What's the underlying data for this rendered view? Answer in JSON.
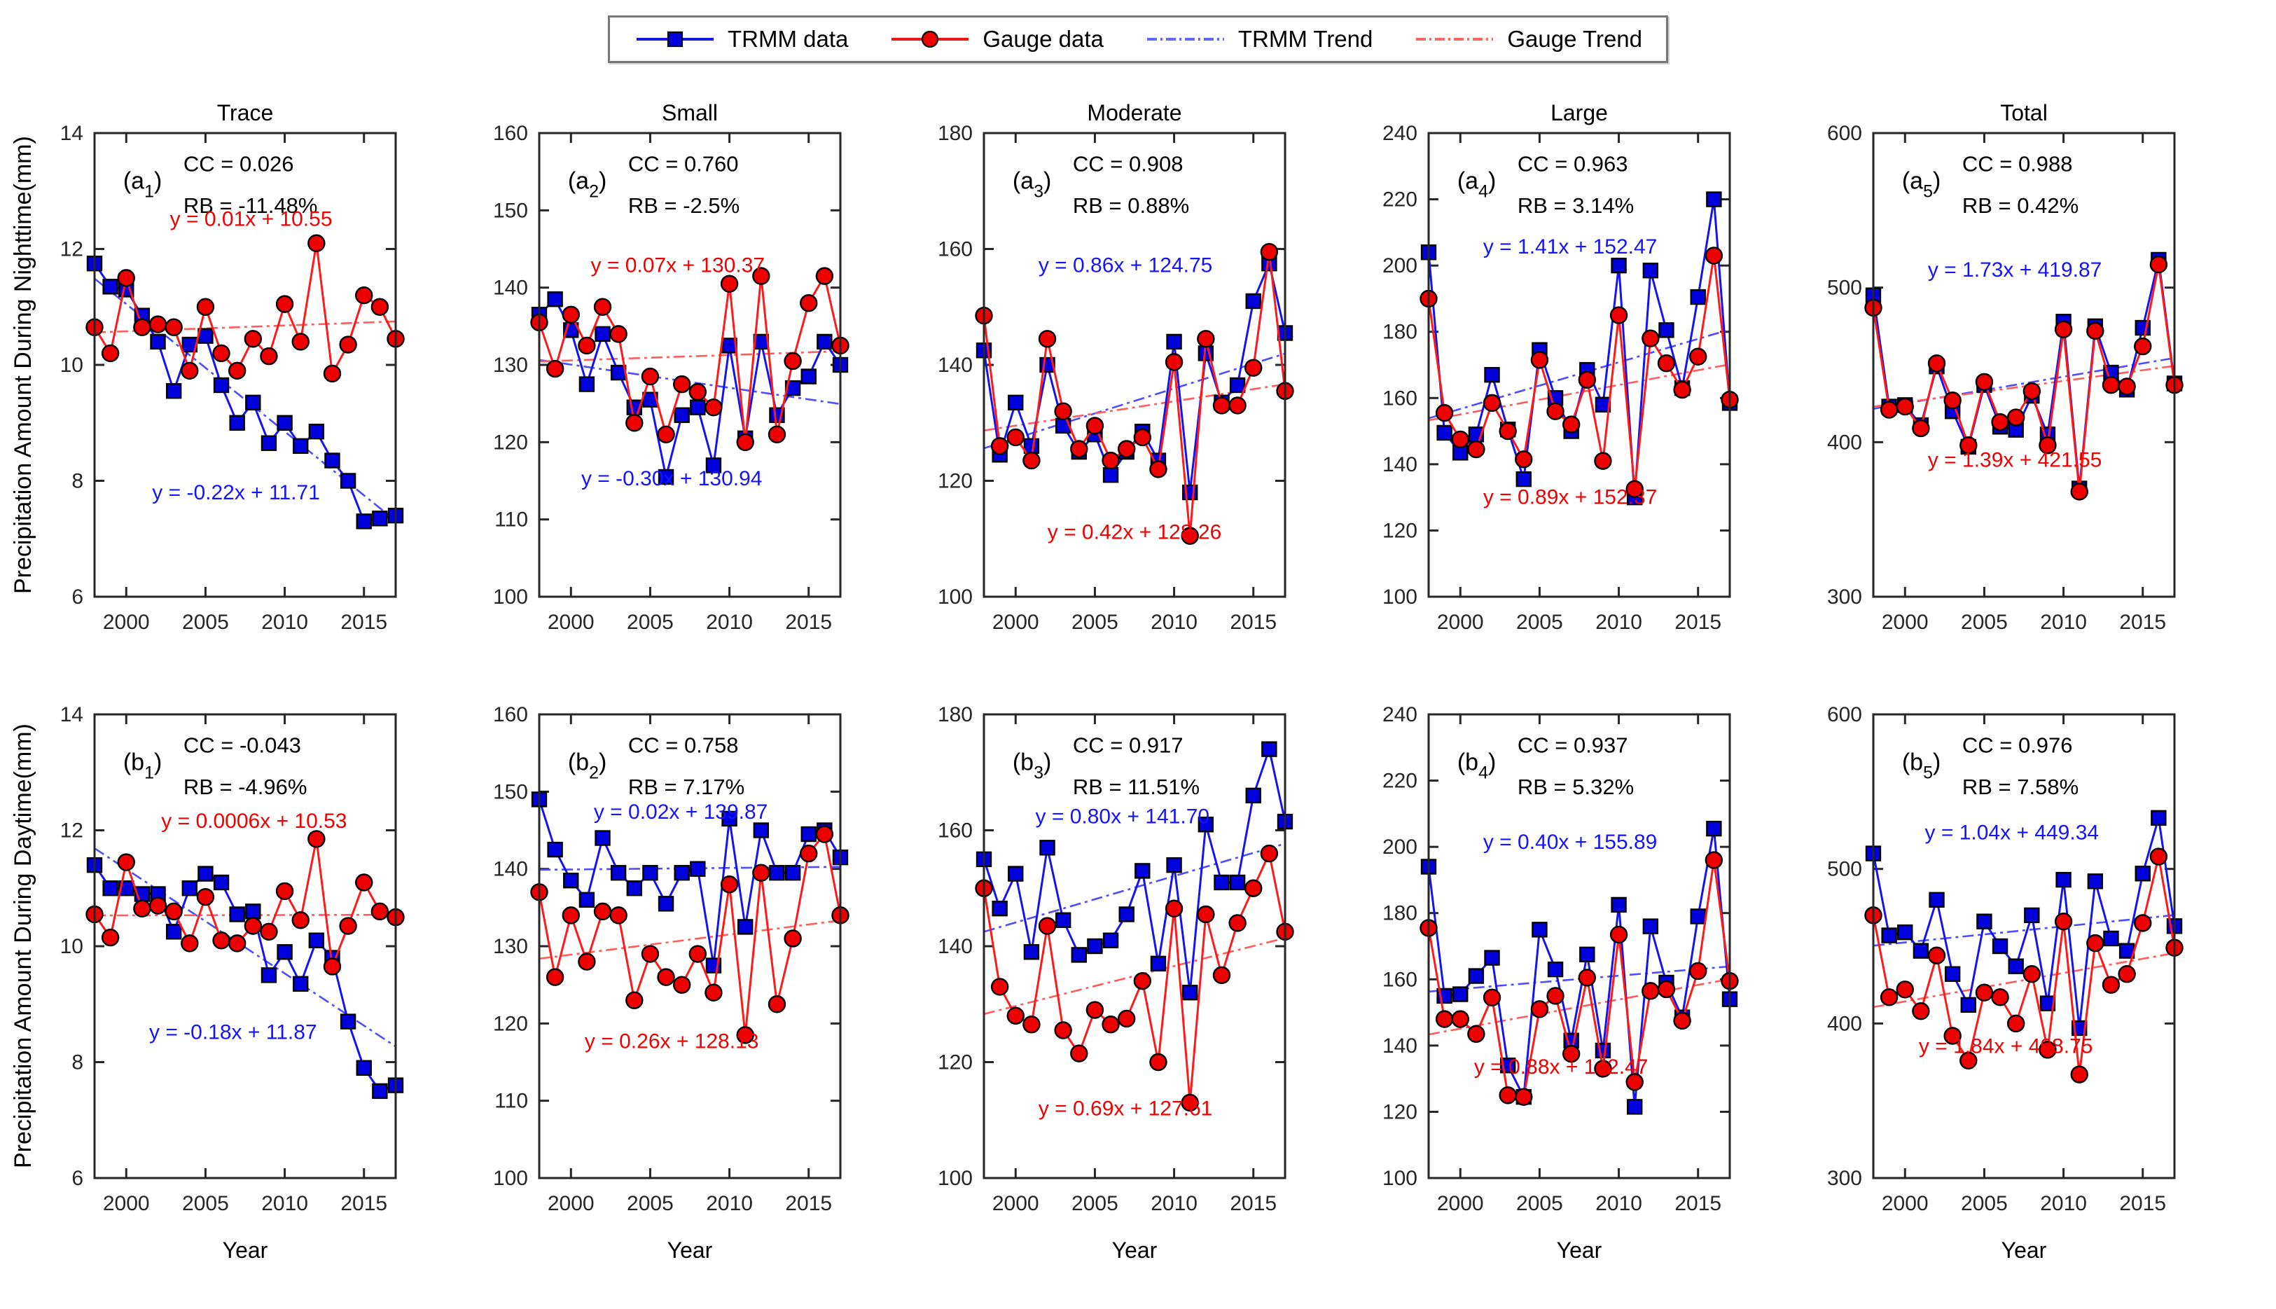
{
  "chart_data": {
    "type": "line",
    "x_years": [
      1998,
      1999,
      2000,
      2001,
      2002,
      2003,
      2004,
      2005,
      2006,
      2007,
      2008,
      2009,
      2010,
      2011,
      2012,
      2013,
      2014,
      2015,
      2016,
      2017
    ],
    "xticks": [
      2000,
      2005,
      2010,
      2015
    ],
    "xlabel": "Year",
    "row_labels": {
      "a": "Precipitation Amount During Nighttime(mm)",
      "b": "Precipitation Amount During Daytime(mm)"
    },
    "legend": {
      "position": "top-center",
      "items": [
        {
          "label": "TRMM data",
          "series": "trmm",
          "color": "#1414f0",
          "marker": "square",
          "line": "solid"
        },
        {
          "label": "Gauge data",
          "series": "gauge",
          "color": "#f01414",
          "marker": "circle",
          "line": "solid"
        },
        {
          "label": "TRMM Trend",
          "series": "trmm",
          "color": "#6666ff",
          "marker": "none",
          "line": "dashdot"
        },
        {
          "label": "Gauge Trend",
          "series": "gauge",
          "color": "#ff6666",
          "marker": "none",
          "line": "dashdot"
        }
      ]
    },
    "colors": {
      "axis": "#262626",
      "trmm_line": "#1414f0",
      "trmm_marker": "#0000dc",
      "trmm_trend": "#4d4dff",
      "trmm_text": "#1414ff",
      "gauge_line": "#ff1a1a",
      "gauge_marker": "#ee0000",
      "gauge_trend": "#ff5c5c",
      "gauge_text": "#f00000"
    },
    "panels": [
      {
        "id": "a1",
        "row": "a",
        "col": 0,
        "title": "Trace",
        "label": {
          "open": "(a",
          "sub": "1",
          "close": ")"
        },
        "cc": "CC = 0.026",
        "rb": "RB = -11.48%",
        "ylim": [
          6,
          14
        ],
        "yticks": [
          6,
          8,
          10,
          12,
          14
        ],
        "trmm": {
          "values": [
            11.75,
            11.35,
            11.3,
            10.85,
            10.4,
            9.55,
            10.35,
            10.5,
            9.65,
            9.0,
            9.35,
            8.65,
            9.0,
            8.6,
            8.85,
            8.35,
            8.0,
            7.3,
            7.35,
            7.4
          ],
          "trend": {
            "slope": -0.22,
            "intercept": 11.71
          },
          "eq": "y = -0.22x + 11.71",
          "eq_pos": {
            "x": 0.47,
            "y": 0.79
          }
        },
        "gauge": {
          "values": [
            10.65,
            10.2,
            11.5,
            10.65,
            10.7,
            10.65,
            9.9,
            11.0,
            10.2,
            9.9,
            10.45,
            10.15,
            11.05,
            10.4,
            12.1,
            9.85,
            10.35,
            11.2,
            11.0,
            10.45
          ],
          "trend": {
            "slope": 0.01,
            "intercept": 10.55
          },
          "eq": "y = 0.01x + 10.55",
          "eq_pos": {
            "x": 0.52,
            "y": 0.2
          }
        }
      },
      {
        "id": "a2",
        "row": "a",
        "col": 1,
        "title": "Small",
        "label": {
          "open": "(a",
          "sub": "2",
          "close": ")"
        },
        "cc": "CC = 0.760",
        "rb": "RB = -2.5%",
        "ylim": [
          100,
          160
        ],
        "yticks": [
          100,
          110,
          120,
          130,
          140,
          150,
          160
        ],
        "trmm": {
          "values": [
            136.5,
            138.5,
            134.5,
            127.5,
            134,
            129,
            124.5,
            125.5,
            115.5,
            123.5,
            124.5,
            117,
            132.5,
            120.5,
            133,
            123.5,
            127,
            128.5,
            133,
            130
          ],
          "trend": {
            "slope": -0.3,
            "intercept": 130.94
          },
          "eq": "y = -0.30x + 130.94",
          "eq_pos": {
            "x": 0.44,
            "y": 0.76
          }
        },
        "gauge": {
          "values": [
            135.5,
            129.5,
            136.5,
            132.5,
            137.5,
            134,
            122.5,
            128.5,
            121,
            127.5,
            126.5,
            124.5,
            140.5,
            120,
            141.5,
            121,
            130.5,
            138,
            141.5,
            132.5
          ],
          "trend": {
            "slope": 0.07,
            "intercept": 130.37
          },
          "eq": "y = 0.07x + 130.37",
          "eq_pos": {
            "x": 0.46,
            "y": 0.3
          }
        }
      },
      {
        "id": "a3",
        "row": "a",
        "col": 2,
        "title": "Moderate",
        "label": {
          "open": "(a",
          "sub": "3",
          "close": ")"
        },
        "cc": "CC = 0.908",
        "rb": "RB = 0.88%",
        "ylim": [
          100,
          180
        ],
        "yticks": [
          100,
          120,
          140,
          160,
          180
        ],
        "trmm": {
          "values": [
            142.5,
            124.5,
            133.5,
            126,
            140,
            129.5,
            125,
            128,
            121,
            125,
            128.5,
            123.5,
            144,
            118,
            142,
            133.5,
            136.5,
            151,
            157.5,
            145.5
          ],
          "trend": {
            "slope": 0.86,
            "intercept": 124.75
          },
          "eq": "y = 0.86x + 124.75",
          "eq_pos": {
            "x": 0.47,
            "y": 0.3
          }
        },
        "gauge": {
          "values": [
            148.5,
            126,
            127.5,
            123.5,
            144.5,
            132,
            125.5,
            129.5,
            123.5,
            125.5,
            127.5,
            122,
            140.5,
            110.5,
            144.5,
            133,
            133,
            139.5,
            159.5,
            135.5
          ],
          "trend": {
            "slope": 0.42,
            "intercept": 128.26
          },
          "eq": "y = 0.42x + 128.26",
          "eq_pos": {
            "x": 0.5,
            "y": 0.875
          }
        }
      },
      {
        "id": "a4",
        "row": "a",
        "col": 3,
        "title": "Large",
        "label": {
          "open": "(a",
          "sub": "4",
          "close": ")"
        },
        "cc": "CC = 0.963",
        "rb": "RB = 3.14%",
        "ylim": [
          100,
          240
        ],
        "yticks": [
          100,
          120,
          140,
          160,
          180,
          200,
          220,
          240
        ],
        "trmm": {
          "values": [
            204,
            149.5,
            143.5,
            149,
            167,
            150.5,
            135.5,
            174.5,
            160,
            150,
            168.5,
            158,
            200,
            130,
            198.5,
            180.5,
            163,
            190.5,
            220,
            158.5
          ],
          "trend": {
            "slope": 1.41,
            "intercept": 152.47
          },
          "eq": "y = 1.41x + 152.47",
          "eq_pos": {
            "x": 0.47,
            "y": 0.26
          }
        },
        "gauge": {
          "values": [
            190,
            155.5,
            147.5,
            144.5,
            158.5,
            150,
            141.5,
            171.5,
            156,
            152,
            165.5,
            141,
            185,
            132.5,
            178,
            170.5,
            162.5,
            172.5,
            203,
            159.5
          ],
          "trend": {
            "slope": 0.89,
            "intercept": 152.37
          },
          "eq": "y = 0.89x + 152.37",
          "eq_pos": {
            "x": 0.47,
            "y": 0.8
          }
        }
      },
      {
        "id": "a5",
        "row": "a",
        "col": 4,
        "title": "Total",
        "label": {
          "open": "(a",
          "sub": "5",
          "close": ")"
        },
        "cc": "CC = 0.988",
        "rb": "RB = 0.42%",
        "ylim": [
          300,
          600
        ],
        "yticks": [
          300,
          400,
          500,
          600
        ],
        "trmm": {
          "values": [
            495,
            423,
            424,
            411,
            449,
            420,
            397,
            437,
            410,
            408,
            430,
            405,
            478,
            370,
            475,
            445,
            434,
            474,
            518,
            438
          ],
          "trend": {
            "slope": 1.73,
            "intercept": 419.87
          },
          "eq": "y = 1.73x + 419.87",
          "eq_pos": {
            "x": 0.47,
            "y": 0.31
          }
        },
        "gauge": {
          "values": [
            487,
            421,
            423,
            409,
            451,
            427,
            398,
            439,
            413,
            416,
            433,
            398,
            473,
            368,
            472,
            437,
            436,
            462,
            515,
            437
          ],
          "trend": {
            "slope": 1.39,
            "intercept": 421.55
          },
          "eq": "y = 1.39x + 421.55",
          "eq_pos": {
            "x": 0.47,
            "y": 0.72
          }
        }
      },
      {
        "id": "b1",
        "row": "b",
        "col": 0,
        "title": "",
        "label": {
          "open": "(b",
          "sub": "1",
          "close": ")"
        },
        "cc": "CC = -0.043",
        "rb": "RB = -4.96%",
        "ylim": [
          6,
          14
        ],
        "yticks": [
          6,
          8,
          10,
          12,
          14
        ],
        "trmm": {
          "values": [
            11.4,
            11.0,
            11.0,
            10.9,
            10.9,
            10.25,
            11.0,
            11.25,
            11.1,
            10.55,
            10.6,
            9.5,
            9.9,
            9.35,
            10.1,
            9.8,
            8.7,
            7.9,
            7.5,
            7.6
          ],
          "trend": {
            "slope": -0.18,
            "intercept": 11.87
          },
          "eq": "y = -0.18x + 11.87",
          "eq_pos": {
            "x": 0.46,
            "y": 0.7
          }
        },
        "gauge": {
          "values": [
            10.55,
            10.15,
            11.45,
            10.65,
            10.7,
            10.6,
            10.05,
            10.85,
            10.1,
            10.05,
            10.35,
            10.25,
            10.95,
            10.45,
            11.85,
            9.65,
            10.35,
            11.1,
            10.6,
            10.5
          ],
          "trend": {
            "slope": 0.0006,
            "intercept": 10.53
          },
          "eq": "y = 0.0006x + 10.53",
          "eq_pos": {
            "x": 0.53,
            "y": 0.245
          }
        }
      },
      {
        "id": "b2",
        "row": "b",
        "col": 1,
        "title": "",
        "label": {
          "open": "(b",
          "sub": "2",
          "close": ")"
        },
        "cc": "CC = 0.758",
        "rb": "RB = 7.17%",
        "ylim": [
          100,
          160
        ],
        "yticks": [
          100,
          110,
          120,
          130,
          140,
          150,
          160
        ],
        "trmm": {
          "values": [
            149,
            142.5,
            138.5,
            136,
            144,
            139.5,
            137.5,
            139.5,
            135.5,
            139.5,
            140,
            127.5,
            146.5,
            132.5,
            145,
            139.5,
            139.5,
            144.5,
            145,
            141.5
          ],
          "trend": {
            "slope": 0.02,
            "intercept": 139.87
          },
          "eq": "y = 0.02x + 139.87",
          "eq_pos": {
            "x": 0.47,
            "y": 0.225
          }
        },
        "gauge": {
          "values": [
            137,
            126,
            134,
            128,
            134.5,
            134,
            123,
            129,
            126,
            125,
            129,
            124,
            138,
            118.5,
            139.5,
            122.5,
            131,
            142,
            144.5,
            134
          ],
          "trend": {
            "slope": 0.26,
            "intercept": 128.13
          },
          "eq": "y = 0.26x + 128.13",
          "eq_pos": {
            "x": 0.44,
            "y": 0.72
          }
        }
      },
      {
        "id": "b3",
        "row": "b",
        "col": 2,
        "title": "",
        "label": {
          "open": "(b",
          "sub": "3",
          "close": ")"
        },
        "cc": "CC = 0.917",
        "rb": "RB = 11.51%",
        "ylim": [
          100,
          180
        ],
        "yticks": [
          100,
          120,
          140,
          160,
          180
        ],
        "trmm": {
          "values": [
            155,
            146.5,
            152.5,
            139,
            157,
            144.5,
            138.5,
            140,
            141,
            145.5,
            153,
            137,
            154,
            132,
            161,
            151,
            151,
            166,
            174,
            161.5
          ],
          "trend": {
            "slope": 0.8,
            "intercept": 141.7
          },
          "eq": "y = 0.80x + 141.70",
          "eq_pos": {
            "x": 0.46,
            "y": 0.235
          }
        },
        "gauge": {
          "values": [
            150,
            133,
            128,
            126.5,
            143.5,
            125.5,
            121.5,
            129,
            126.5,
            127.5,
            134,
            120,
            146.5,
            113,
            145.5,
            135,
            144,
            150,
            156,
            142.5
          ],
          "trend": {
            "slope": 0.69,
            "intercept": 127.61
          },
          "eq": "y = 0.69x + 127.61",
          "eq_pos": {
            "x": 0.47,
            "y": 0.865
          }
        }
      },
      {
        "id": "b4",
        "row": "b",
        "col": 3,
        "title": "",
        "label": {
          "open": "(b",
          "sub": "4",
          "close": ")"
        },
        "cc": "CC = 0.937",
        "rb": "RB = 5.32%",
        "ylim": [
          100,
          240
        ],
        "yticks": [
          100,
          120,
          140,
          160,
          180,
          200,
          220,
          240
        ],
        "trmm": {
          "values": [
            194,
            155,
            155.5,
            161,
            166.5,
            134,
            124.5,
            175,
            163,
            141.5,
            167.5,
            138.5,
            182.5,
            121.5,
            176,
            159,
            148.5,
            179,
            205.5,
            154
          ],
          "trend": {
            "slope": 0.4,
            "intercept": 155.89
          },
          "eq": "y = 0.40x + 155.89",
          "eq_pos": {
            "x": 0.47,
            "y": 0.29
          }
        },
        "gauge": {
          "values": [
            175.5,
            148,
            148,
            143.5,
            154.5,
            125,
            124.5,
            151,
            155,
            137.5,
            160.5,
            133,
            173.5,
            129,
            156.5,
            157,
            147.5,
            162.5,
            196,
            159.5
          ],
          "trend": {
            "slope": 0.88,
            "intercept": 142.47
          },
          "eq": "y = 0.88x + 142.47",
          "eq_pos": {
            "x": 0.44,
            "y": 0.775
          }
        }
      },
      {
        "id": "b5",
        "row": "b",
        "col": 4,
        "title": "",
        "label": {
          "open": "(b",
          "sub": "5",
          "close": ")"
        },
        "cc": "CC = 0.976",
        "rb": "RB = 7.58%",
        "ylim": [
          300,
          600
        ],
        "yticks": [
          300,
          400,
          500,
          600
        ],
        "trmm": {
          "values": [
            510,
            457,
            459,
            447,
            480,
            432,
            412,
            466,
            450,
            437,
            470,
            413,
            493,
            397,
            492,
            455,
            447,
            497,
            533,
            463
          ],
          "trend": {
            "slope": 1.04,
            "intercept": 449.34
          },
          "eq": "y = 1.04x + 449.34",
          "eq_pos": {
            "x": 0.46,
            "y": 0.27
          }
        },
        "gauge": {
          "values": [
            470,
            417,
            422,
            408,
            444,
            392,
            376,
            420,
            417,
            400,
            432,
            383,
            466,
            367,
            452,
            425,
            432,
            465,
            508,
            449
          ],
          "trend": {
            "slope": 1.84,
            "intercept": 408.75
          },
          "eq": "y = 1.84x + 408.75",
          "eq_pos": {
            "x": 0.44,
            "y": 0.73
          }
        }
      }
    ]
  }
}
